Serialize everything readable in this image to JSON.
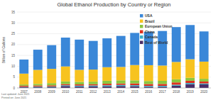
{
  "chart_data": {
    "type": "bar",
    "stacked": true,
    "title": "Global Ethanol Production by Country or Region",
    "y_label": "Billion of Gallons",
    "annotations": [
      "Last updated: June 2021",
      "Printed on: June 2021"
    ],
    "categories": [
      "2007",
      "2008",
      "2009",
      "2010",
      "2011",
      "2012",
      "2013",
      "2014",
      "2015",
      "2016",
      "2017",
      "2018",
      "2019",
      "2020"
    ],
    "series": [
      {
        "name": "USA",
        "color": "#3a87d8",
        "values": [
          6.5,
          9.31,
          10.94,
          13.3,
          13.93,
          13.22,
          13.31,
          14.31,
          14.81,
          15.41,
          15.94,
          16.09,
          15.78,
          13.93
        ]
      },
      {
        "name": "Brazil",
        "color": "#f7c31f",
        "values": [
          5.02,
          6.47,
          6.58,
          6.92,
          5.57,
          5.58,
          6.27,
          6.19,
          7.09,
          7.3,
          7.06,
          7.99,
          8.57,
          7.93
        ]
      },
      {
        "name": "European Union",
        "color": "#8cc63f",
        "values": [
          0.57,
          0.73,
          1.04,
          1.21,
          1.17,
          1.18,
          1.37,
          1.45,
          1.39,
          1.38,
          1.42,
          1.45,
          1.37,
          1.25
        ]
      },
      {
        "name": "China",
        "color": "#e0301e",
        "values": [
          0.49,
          0.5,
          0.54,
          0.54,
          0.56,
          0.56,
          0.7,
          0.64,
          0.81,
          0.85,
          0.87,
          1.05,
          1.0,
          0.88
        ]
      },
      {
        "name": "Canada",
        "color": "#3bb0c9",
        "values": [
          0.21,
          0.24,
          0.29,
          0.36,
          0.46,
          0.45,
          0.52,
          0.51,
          0.44,
          0.44,
          0.45,
          0.46,
          0.5,
          0.43
        ]
      },
      {
        "name": "Rest of World",
        "color": "#4a2f6a",
        "values": [
          0.32,
          0.39,
          0.35,
          0.89,
          0.6,
          0.7,
          0.71,
          0.9,
          0.84,
          0.52,
          0.53,
          1.03,
          1.8,
          1.65
        ]
      }
    ],
    "ylim": [
      0,
      35
    ],
    "yticks": [
      0,
      5,
      10,
      15,
      20,
      25,
      30,
      35
    ],
    "grid": true,
    "legend": "top-right"
  }
}
